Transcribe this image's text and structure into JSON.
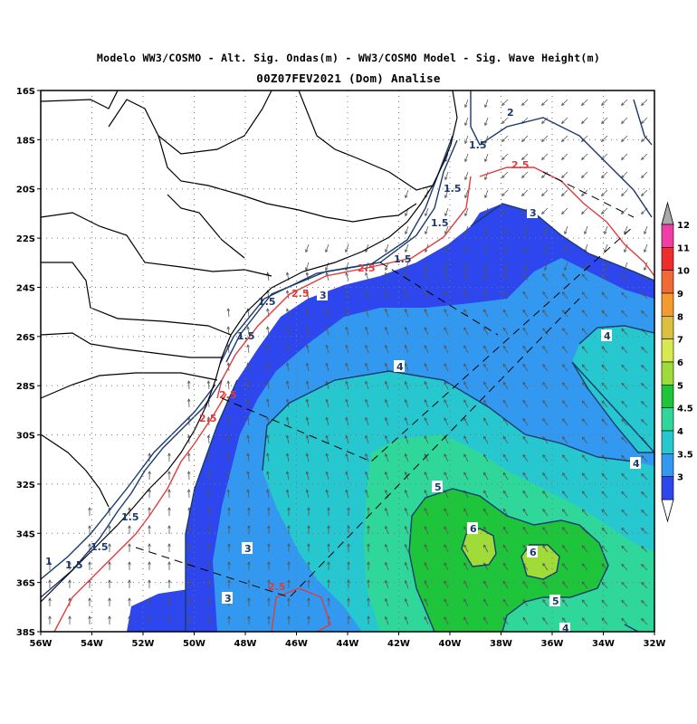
{
  "title_line1": "Modelo WW3/COSMO - Alt. Sig. Ondas(m) - WW3/COSMO Model - Sig. Wave Height(m)",
  "title_line2": "00Z07FEV2021 (Dom) Analise",
  "axes": {
    "lon_labels": [
      "56W",
      "54W",
      "52W",
      "50W",
      "48W",
      "46W",
      "44W",
      "42W",
      "40W",
      "38W",
      "36W",
      "34W",
      "32W"
    ],
    "lat_labels": [
      "16S",
      "18S",
      "20S",
      "22S",
      "24S",
      "26S",
      "28S",
      "30S",
      "32S",
      "34S",
      "36S",
      "38S"
    ],
    "lon_range": [
      -56,
      -32
    ],
    "lat_range": [
      -38,
      -16
    ],
    "grid": "dotted"
  },
  "colorbar": {
    "labels": [
      "12",
      "11",
      "10",
      "9",
      "8",
      "7",
      "6",
      "5",
      "4.5",
      "4",
      "3.5",
      "3"
    ],
    "colors": [
      "#f03ea6",
      "#ee2d2d",
      "#f26a33",
      "#f59a2f",
      "#ddbf3e",
      "#d8e84f",
      "#9fdc3a",
      "#1ec43a",
      "#2fd89a",
      "#27c7cf",
      "#3399f0",
      "#2d46ee"
    ]
  },
  "field_colors": {
    "lt3": "#ffffff",
    "b3": "#2d46ee",
    "b35": "#3399f0",
    "b4": "#27c7cf",
    "b45": "#2fd89a",
    "b5": "#1ec43a",
    "b6": "#9fdc3a",
    "contour_dark": "#1a3a6e",
    "contour_red": "#e03c3c",
    "land_border": "#000000",
    "arrow": "#555555"
  },
  "contour_labels": {
    "north_2": "2",
    "north_15a": "1.5",
    "north_15b": "1.5",
    "north_15c": "1.5",
    "north_15d": "1.5",
    "north_26": "2.5",
    "box3_north": "3",
    "box3_mid": "3",
    "iso4_east": "4",
    "iso4_mid": "4",
    "iso4_right": "4",
    "iso5": "5",
    "iso6a": "6",
    "iso6b": "6",
    "iso5b": "5",
    "iso4_bottom": "4",
    "south_3a": "3",
    "south_3b": "3",
    "south_25a": "2.5",
    "south_25b": "2.5",
    "south_25c": "2.5",
    "south_25d": "2.5",
    "south_25e": "2.5",
    "south_15a": "1.5",
    "south_15b": "1.5",
    "south_15c": "1.5",
    "south_1": "1",
    "coast_15a": "1.5",
    "coast_15b": "1.5"
  }
}
